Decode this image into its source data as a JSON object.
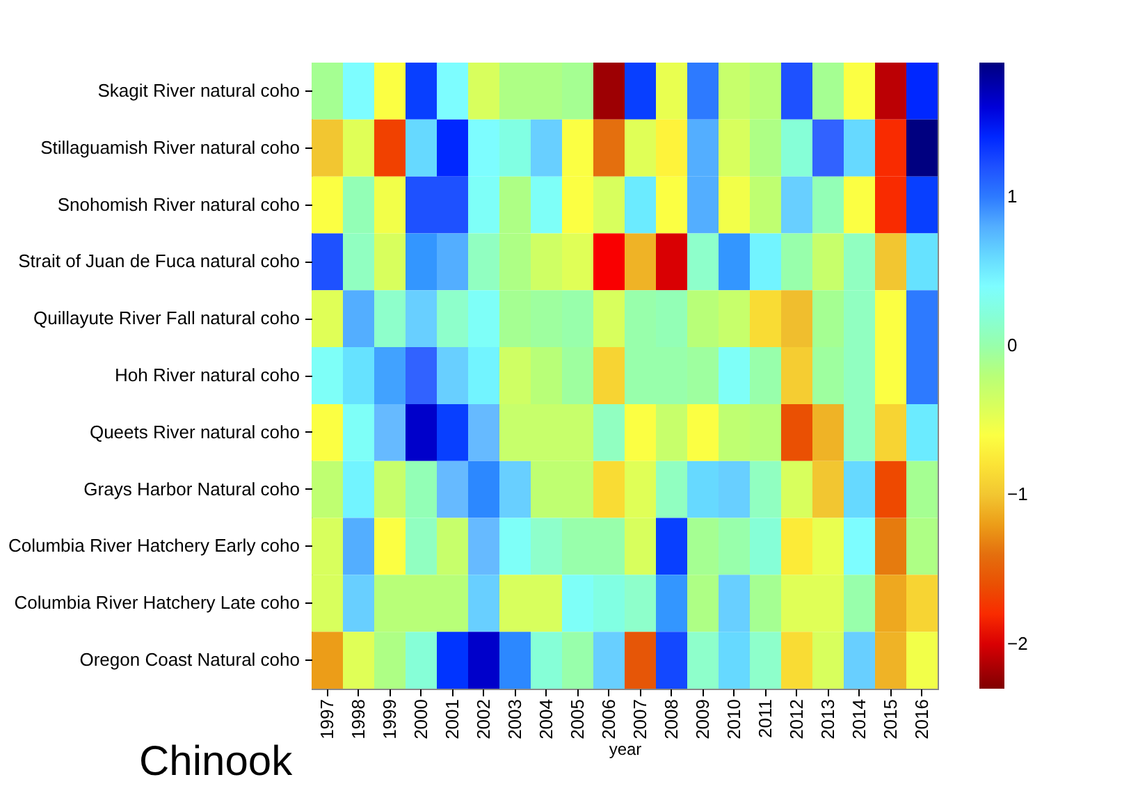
{
  "chart_data": {
    "type": "heatmap",
    "xlabel": "year",
    "categories": [
      "1997",
      "1998",
      "1999",
      "2000",
      "2001",
      "2002",
      "2003",
      "2004",
      "2005",
      "2006",
      "2007",
      "2008",
      "2009",
      "2010",
      "2011",
      "2012",
      "2013",
      "2014",
      "2015",
      "2016"
    ],
    "y_categories": [
      "Skagit River natural coho",
      "Stillaguamish River natural coho",
      "Snohomish River natural coho",
      "Strait of Juan de Fuca natural coho",
      "Quillayute River Fall natural coho",
      "Hoh River natural coho",
      "Queets River natural coho",
      "Grays Harbor Natural coho",
      "Columbia River Hatchery Early coho",
      "Columbia River Hatchery Late coho",
      "Oregon Coast Natural coho"
    ],
    "cells": [
      [
        -0.1,
        0.4,
        -0.6,
        1.3,
        0.4,
        -0.4,
        -0.15,
        -0.15,
        -0.1,
        -2.2,
        1.3,
        -0.5,
        1.0,
        -0.3,
        -0.2,
        1.2,
        -0.1,
        -0.6,
        -2.1,
        1.4
      ],
      [
        -1.0,
        -0.45,
        -1.7,
        0.6,
        1.4,
        0.4,
        0.25,
        0.65,
        -0.6,
        -1.4,
        -0.45,
        -0.7,
        0.8,
        -0.4,
        -0.15,
        0.2,
        1.1,
        0.6,
        -1.8,
        1.9
      ],
      [
        -0.6,
        0.05,
        -0.55,
        1.2,
        1.2,
        0.35,
        -0.15,
        0.35,
        -0.6,
        -0.4,
        0.5,
        -0.6,
        0.8,
        -0.55,
        -0.25,
        0.65,
        0.05,
        -0.6,
        -1.8,
        1.3
      ],
      [
        1.2,
        0.1,
        -0.4,
        0.9,
        0.8,
        0.1,
        -0.15,
        -0.35,
        -0.45,
        -1.9,
        -1.1,
        -2.0,
        0.15,
        0.9,
        0.45,
        0.0,
        -0.3,
        0.1,
        -1.0,
        0.55
      ],
      [
        -0.45,
        0.8,
        0.15,
        0.65,
        0.15,
        0.35,
        -0.1,
        -0.05,
        0.0,
        -0.4,
        0.0,
        0.05,
        -0.2,
        -0.3,
        -0.85,
        -1.05,
        -0.1,
        0.1,
        -0.6,
        1.0
      ],
      [
        0.35,
        0.55,
        0.85,
        1.1,
        0.65,
        0.45,
        -0.35,
        -0.2,
        -0.05,
        -0.9,
        0.0,
        0.0,
        -0.05,
        0.35,
        0.0,
        -0.95,
        -0.05,
        0.1,
        -0.6,
        1.0
      ],
      [
        -0.6,
        0.35,
        0.75,
        1.65,
        1.3,
        0.75,
        -0.3,
        -0.3,
        -0.3,
        0.1,
        -0.6,
        -0.3,
        -0.6,
        -0.25,
        -0.2,
        -1.6,
        -1.1,
        0.1,
        -0.9,
        0.5
      ],
      [
        -0.25,
        0.45,
        -0.3,
        0.05,
        0.75,
        0.95,
        0.65,
        -0.25,
        -0.25,
        -0.85,
        -0.45,
        0.1,
        0.6,
        0.65,
        0.1,
        -0.4,
        -1.0,
        0.6,
        -1.65,
        -0.1
      ],
      [
        -0.4,
        0.8,
        -0.6,
        0.1,
        -0.3,
        0.75,
        0.35,
        0.15,
        0.0,
        0.0,
        -0.4,
        1.3,
        -0.1,
        0.0,
        0.2,
        -0.75,
        -0.5,
        0.4,
        -1.35,
        -0.15
      ],
      [
        -0.4,
        0.65,
        -0.2,
        -0.2,
        -0.2,
        0.65,
        -0.4,
        -0.4,
        0.35,
        0.25,
        0.15,
        0.9,
        -0.15,
        0.65,
        -0.1,
        -0.45,
        -0.45,
        0.0,
        -1.15,
        -0.9
      ],
      [
        -1.2,
        -0.45,
        -0.15,
        0.2,
        1.35,
        1.65,
        0.95,
        0.2,
        0.0,
        0.65,
        -1.55,
        1.25,
        0.15,
        0.6,
        0.15,
        -0.85,
        -0.4,
        0.65,
        -1.1,
        -0.55
      ]
    ],
    "clim": [
      -2.3,
      1.9
    ],
    "cticks": [
      {
        "value": -2,
        "label": "−2"
      },
      {
        "value": -1,
        "label": "−1"
      },
      {
        "value": 0,
        "label": "0"
      },
      {
        "value": 1,
        "label": "1"
      }
    ],
    "annotations": [
      "Chinook"
    ]
  }
}
